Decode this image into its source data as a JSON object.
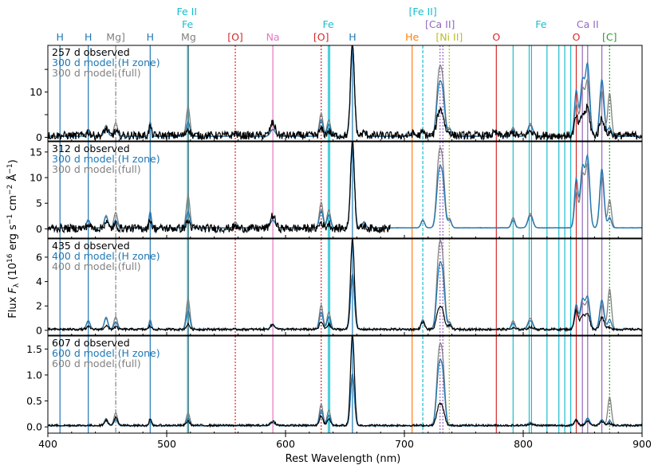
{
  "chart_data": {
    "type": "line",
    "xlabel": "Rest Wavelength (nm)",
    "ylabel": "Flux F_λ (10^16 erg s^-1 cm^-2 Å^-1)",
    "ylabel_parts": [
      "Flux ",
      "F",
      "λ",
      " (10",
      "16",
      " erg s",
      "−1",
      " cm",
      "−2",
      " Å",
      "−1",
      ")"
    ],
    "xlim": [
      400,
      900
    ],
    "xticks": [
      "400",
      "500",
      "600",
      "700",
      "800",
      "900"
    ],
    "colors": {
      "observed": "#000000",
      "hzone": "#1f77b4",
      "full": "#808080"
    },
    "line_ids": [
      {
        "label": "H",
        "x": 410.2,
        "color": "#1f77b4",
        "style": "solid",
        "row": 0
      },
      {
        "label": "H",
        "x": 434.0,
        "color": "#1f77b4",
        "style": "solid",
        "row": 0
      },
      {
        "label": "Mg]",
        "x": 457.1,
        "color": "#808080",
        "style": "dashdot",
        "row": 0
      },
      {
        "label": "H",
        "x": 486.1,
        "color": "#1f77b4",
        "style": "solid",
        "row": 0
      },
      {
        "label": "Fe II",
        "x": 517.0,
        "color": "#17becf",
        "style": "none",
        "row": 2
      },
      {
        "label": "Fe",
        "x": 517.5,
        "color": "#17becf",
        "style": "solid",
        "row": 1
      },
      {
        "label": "Mg",
        "x": 518.4,
        "color": "#808080",
        "style": "solid",
        "row": 0
      },
      {
        "label": "[O]",
        "x": 557.7,
        "color": "#d62728",
        "style": "dotted",
        "row": 0
      },
      {
        "label": "Na",
        "x": 589.3,
        "color": "#e377c2",
        "style": "solid",
        "row": 0
      },
      {
        "label": "[O]",
        "x": 630.0,
        "color": "#d62728",
        "style": "dotted",
        "row": 0
      },
      {
        "label": "Fe",
        "x": 636.0,
        "color": "#17becf",
        "style": "solid",
        "row": 1
      },
      {
        "label": "H",
        "x": 656.3,
        "color": "#1f77b4",
        "style": "solid",
        "row": 0
      },
      {
        "label": "He",
        "x": 706.5,
        "color": "#ff7f0e",
        "style": "solid",
        "row": 0
      },
      {
        "label": "[Fe II]",
        "x": 715.5,
        "color": "#17becf",
        "style": "dashed",
        "row": 2
      },
      {
        "label": "[Ca II]",
        "x": 730.0,
        "color": "#9467bd",
        "style": "dotted",
        "row": 1
      },
      {
        "label": "[Ni II]",
        "x": 737.8,
        "color": "#bcbd22",
        "style": "dotted",
        "row": 0
      },
      {
        "label": "O",
        "x": 777.4,
        "color": "#d62728",
        "style": "solid",
        "row": 0
      },
      {
        "label": "Fe",
        "x": 815.0,
        "color": "#17becf",
        "style": "none",
        "row": 1
      },
      {
        "label": "O",
        "x": 844.6,
        "color": "#d62728",
        "style": "solid",
        "row": 0
      },
      {
        "label": "Ca II",
        "x": 854.2,
        "color": "#9467bd",
        "style": "solid",
        "row": 1
      },
      {
        "label": "[C]",
        "x": 872.7,
        "color": "#2ca02c",
        "style": "dotted",
        "row": 0
      }
    ],
    "extra_lines": [
      {
        "x": 517.8,
        "color": "#17becf",
        "style": "solid"
      },
      {
        "x": 637.2,
        "color": "#17becf",
        "style": "solid"
      },
      {
        "x": 732.4,
        "color": "#9467bd",
        "style": "dotted"
      },
      {
        "x": 791.5,
        "color": "#17becf",
        "style": "solid"
      },
      {
        "x": 805.0,
        "color": "#17becf",
        "style": "solid"
      },
      {
        "x": 807.0,
        "color": "#17becf",
        "style": "solid"
      },
      {
        "x": 820.0,
        "color": "#17becf",
        "style": "solid"
      },
      {
        "x": 830.0,
        "color": "#17becf",
        "style": "solid"
      },
      {
        "x": 835.0,
        "color": "#17becf",
        "style": "solid"
      },
      {
        "x": 840.0,
        "color": "#17becf",
        "style": "solid"
      },
      {
        "x": 849.8,
        "color": "#9467bd",
        "style": "solid"
      },
      {
        "x": 866.2,
        "color": "#9467bd",
        "style": "solid"
      }
    ],
    "panels": [
      {
        "legend": [
          "257 d observed",
          "300 d model (H zone)",
          "300 d model (full)"
        ],
        "ylim": [
          -0.8,
          20.3
        ],
        "yticks": [
          0,
          5,
          10,
          15
        ],
        "yticklabels": [
          "0",
          "",
          "10",
          ""
        ],
        "noise": 0.9,
        "obs_max": 900,
        "obs_cont": 0.4,
        "peaks": [
          {
            "x": 656.3,
            "w": 1.6,
            "obs": 20.3,
            "mod": 20.3,
            "full": 20.3
          },
          {
            "x": 589.3,
            "w": 2.0,
            "obs": 2.8,
            "mod": 1.5,
            "full": 1.5
          },
          {
            "x": 630.0,
            "w": 1.5,
            "obs": 1.4,
            "mod": 3.6,
            "full": 5.1
          },
          {
            "x": 636.4,
            "w": 1.5,
            "obs": 1.0,
            "mod": 2.6,
            "full": 3.6
          },
          {
            "x": 729.1,
            "w": 2.0,
            "obs": 4.8,
            "mod": 10.2,
            "full": 13.0
          },
          {
            "x": 732.4,
            "w": 1.8,
            "obs": 3.5,
            "mod": 7.5,
            "full": 9.5
          },
          {
            "x": 486.1,
            "w": 1.0,
            "obs": 2.0,
            "mod": 3.0,
            "full": 3.2
          },
          {
            "x": 518.0,
            "w": 1.5,
            "obs": 1.6,
            "mod": 3.2,
            "full": 6.5
          },
          {
            "x": 457.1,
            "w": 1.5,
            "obs": 0.8,
            "mod": 1.5,
            "full": 3.0
          },
          {
            "x": 434.0,
            "w": 1.5,
            "obs": 0.8,
            "mod": 1.5,
            "full": 1.6
          },
          {
            "x": 449.0,
            "w": 1.5,
            "obs": 1.5,
            "mod": 2.2,
            "full": 2.4
          },
          {
            "x": 557.7,
            "w": 1.5,
            "obs": 0.5,
            "mod": 0.6,
            "full": 1.2
          },
          {
            "x": 844.6,
            "w": 1.5,
            "obs": 4.0,
            "mod": 10.0,
            "full": 7.0
          },
          {
            "x": 849.8,
            "w": 1.8,
            "obs": 4.5,
            "mod": 12.0,
            "full": 10.0
          },
          {
            "x": 854.2,
            "w": 1.8,
            "obs": 6.0,
            "mod": 15.5,
            "full": 12.0
          },
          {
            "x": 866.2,
            "w": 1.8,
            "obs": 4.0,
            "mod": 12.5,
            "full": 10.0
          },
          {
            "x": 872.7,
            "w": 1.5,
            "obs": 0.8,
            "mod": 2.0,
            "full": 9.5
          },
          {
            "x": 806.0,
            "w": 2.0,
            "obs": 1.0,
            "mod": 2.4,
            "full": 2.8
          },
          {
            "x": 791.5,
            "w": 1.5,
            "obs": 0.6,
            "mod": 1.5,
            "full": 2.0
          },
          {
            "x": 715.5,
            "w": 1.5,
            "obs": 0.6,
            "mod": 1.4,
            "full": 1.6
          },
          {
            "x": 738.0,
            "w": 1.5,
            "obs": 0.8,
            "mod": 1.5,
            "full": 1.8
          },
          {
            "x": 707.0,
            "w": 1.5,
            "obs": 0.4,
            "mod": 0.9,
            "full": 1.1
          },
          {
            "x": 666.0,
            "w": 1.5,
            "obs": 0.6,
            "mod": 1.0,
            "full": 1.2
          },
          {
            "x": 776.0,
            "w": 2.0,
            "obs": 0.5,
            "mod": 1.0,
            "full": 1.2
          }
        ]
      },
      {
        "legend": [
          "312 d observed",
          "300 d model (H zone)",
          "300 d model (full)"
        ],
        "ylim": [
          -1.8,
          17.0
        ],
        "yticks": [
          0,
          5,
          10,
          15
        ],
        "yticklabels": [
          "0",
          "5",
          "10",
          "15"
        ],
        "noise": 0.8,
        "obs_max": 688,
        "obs_cont": 0.1,
        "peaks": [
          {
            "x": 656.3,
            "w": 1.6,
            "obs": 17.0,
            "mod": 17.0,
            "full": 17.0
          },
          {
            "x": 589.3,
            "w": 2.0,
            "obs": 2.5,
            "mod": 1.5,
            "full": 1.5
          },
          {
            "x": 630.0,
            "w": 1.5,
            "obs": 1.2,
            "mod": 3.4,
            "full": 5.0
          },
          {
            "x": 636.4,
            "w": 1.5,
            "obs": 0.9,
            "mod": 2.5,
            "full": 3.5
          },
          {
            "x": 729.1,
            "w": 2.0,
            "obs": 0.0,
            "mod": 10.0,
            "full": 13.0
          },
          {
            "x": 732.4,
            "w": 1.8,
            "obs": 0.0,
            "mod": 7.5,
            "full": 9.5
          },
          {
            "x": 486.1,
            "w": 1.0,
            "obs": 1.8,
            "mod": 3.0,
            "full": 3.2
          },
          {
            "x": 518.0,
            "w": 1.5,
            "obs": 1.4,
            "mod": 3.2,
            "full": 6.3
          },
          {
            "x": 457.1,
            "w": 1.5,
            "obs": 0.7,
            "mod": 1.5,
            "full": 3.0
          },
          {
            "x": 434.0,
            "w": 1.5,
            "obs": 0.7,
            "mod": 1.5,
            "full": 1.6
          },
          {
            "x": 449.0,
            "w": 1.5,
            "obs": 1.3,
            "mod": 2.2,
            "full": 2.4
          },
          {
            "x": 557.7,
            "w": 1.5,
            "obs": 0.4,
            "mod": 0.6,
            "full": 1.2
          },
          {
            "x": 844.6,
            "w": 1.5,
            "obs": 0.0,
            "mod": 9.5,
            "full": 7.0
          },
          {
            "x": 849.8,
            "w": 1.8,
            "obs": 0.0,
            "mod": 11.5,
            "full": 10.0
          },
          {
            "x": 854.2,
            "w": 1.8,
            "obs": 0.0,
            "mod": 13.5,
            "full": 12.0
          },
          {
            "x": 866.2,
            "w": 1.8,
            "obs": 0.0,
            "mod": 11.5,
            "full": 10.0
          },
          {
            "x": 872.7,
            "w": 1.5,
            "obs": 0.0,
            "mod": 2.0,
            "full": 5.5
          },
          {
            "x": 806.0,
            "w": 2.0,
            "obs": 0.0,
            "mod": 2.4,
            "full": 2.8
          },
          {
            "x": 791.5,
            "w": 1.5,
            "obs": 0.0,
            "mod": 1.5,
            "full": 2.0
          },
          {
            "x": 715.5,
            "w": 1.5,
            "obs": 0.0,
            "mod": 1.4,
            "full": 1.6
          },
          {
            "x": 738.0,
            "w": 1.5,
            "obs": 0.0,
            "mod": 1.5,
            "full": 1.8
          },
          {
            "x": 666.0,
            "w": 1.5,
            "obs": 0.5,
            "mod": 1.0,
            "full": 1.2
          }
        ]
      },
      {
        "legend": [
          "435 d observed",
          "400 d model (H zone)",
          "400 d model (full)"
        ],
        "ylim": [
          -0.4,
          7.5
        ],
        "yticks": [
          0,
          2,
          4,
          6
        ],
        "yticklabels": [
          "0",
          "2",
          "4",
          "6"
        ],
        "noise": 0.1,
        "obs_max": 900,
        "obs_cont": 0.08,
        "peaks": [
          {
            "x": 656.3,
            "w": 1.6,
            "obs": 7.5,
            "mod": 4.5,
            "full": 4.5
          },
          {
            "x": 589.3,
            "w": 2.0,
            "obs": 0.4,
            "mod": 0.3,
            "full": 0.3
          },
          {
            "x": 630.0,
            "w": 1.5,
            "obs": 0.6,
            "mod": 1.4,
            "full": 2.0
          },
          {
            "x": 636.4,
            "w": 1.5,
            "obs": 0.4,
            "mod": 1.0,
            "full": 1.4
          },
          {
            "x": 729.1,
            "w": 2.0,
            "obs": 1.6,
            "mod": 4.5,
            "full": 6.0
          },
          {
            "x": 732.4,
            "w": 1.8,
            "obs": 1.1,
            "mod": 3.5,
            "full": 4.5
          },
          {
            "x": 486.1,
            "w": 1.0,
            "obs": 0.3,
            "mod": 0.7,
            "full": 0.8
          },
          {
            "x": 518.0,
            "w": 1.5,
            "obs": 0.4,
            "mod": 1.5,
            "full": 2.5
          },
          {
            "x": 457.1,
            "w": 1.5,
            "obs": 0.2,
            "mod": 0.6,
            "full": 1.0
          },
          {
            "x": 434.0,
            "w": 1.5,
            "obs": 0.2,
            "mod": 0.7,
            "full": 0.7
          },
          {
            "x": 449.0,
            "w": 1.5,
            "obs": 0.3,
            "mod": 0.9,
            "full": 1.0
          },
          {
            "x": 844.6,
            "w": 1.5,
            "obs": 1.6,
            "mod": 2.0,
            "full": 1.5
          },
          {
            "x": 849.8,
            "w": 1.8,
            "obs": 1.1,
            "mod": 2.4,
            "full": 2.0
          },
          {
            "x": 854.2,
            "w": 1.8,
            "obs": 1.3,
            "mod": 2.6,
            "full": 2.2
          },
          {
            "x": 866.2,
            "w": 1.8,
            "obs": 1.0,
            "mod": 2.4,
            "full": 2.0
          },
          {
            "x": 872.7,
            "w": 1.5,
            "obs": 0.2,
            "mod": 0.8,
            "full": 3.3
          },
          {
            "x": 806.0,
            "w": 2.0,
            "obs": 0.2,
            "mod": 0.7,
            "full": 0.9
          },
          {
            "x": 791.5,
            "w": 1.5,
            "obs": 0.1,
            "mod": 0.5,
            "full": 0.7
          },
          {
            "x": 715.5,
            "w": 1.5,
            "obs": 0.6,
            "mod": 0.7,
            "full": 0.8
          },
          {
            "x": 738.0,
            "w": 1.5,
            "obs": 0.3,
            "mod": 0.5,
            "full": 0.6
          }
        ]
      },
      {
        "legend": [
          "607 d observed",
          "600 d model (H zone)",
          "600 d model (full)"
        ],
        "ylim": [
          -0.12,
          1.75
        ],
        "yticks": [
          0,
          0.5,
          1.0,
          1.5
        ],
        "yticklabels": [
          "0.0",
          "0.5",
          "1.0",
          "1.5"
        ],
        "noise": 0.02,
        "obs_max": 900,
        "obs_cont": 0.03,
        "peaks": [
          {
            "x": 656.3,
            "w": 1.6,
            "obs": 1.75,
            "mod": 1.0,
            "full": 1.0
          },
          {
            "x": 589.3,
            "w": 2.0,
            "obs": 0.08,
            "mod": 0.06,
            "full": 0.06
          },
          {
            "x": 630.0,
            "w": 1.5,
            "obs": 0.18,
            "mod": 0.3,
            "full": 0.42
          },
          {
            "x": 636.4,
            "w": 1.5,
            "obs": 0.12,
            "mod": 0.2,
            "full": 0.3
          },
          {
            "x": 729.1,
            "w": 2.0,
            "obs": 0.35,
            "mod": 1.05,
            "full": 1.3
          },
          {
            "x": 732.4,
            "w": 1.8,
            "obs": 0.25,
            "mod": 0.8,
            "full": 1.0
          },
          {
            "x": 486.1,
            "w": 1.0,
            "obs": 0.12,
            "mod": 0.1,
            "full": 0.1
          },
          {
            "x": 518.0,
            "w": 1.5,
            "obs": 0.08,
            "mod": 0.15,
            "full": 0.25
          },
          {
            "x": 457.1,
            "w": 1.5,
            "obs": 0.15,
            "mod": 0.12,
            "full": 0.25
          },
          {
            "x": 449.0,
            "w": 1.5,
            "obs": 0.1,
            "mod": 0.12,
            "full": 0.14
          },
          {
            "x": 844.6,
            "w": 1.5,
            "obs": 0.1,
            "mod": 0.12,
            "full": 0.1
          },
          {
            "x": 854.2,
            "w": 1.8,
            "obs": 0.08,
            "mod": 0.15,
            "full": 0.12
          },
          {
            "x": 866.2,
            "w": 1.8,
            "obs": 0.08,
            "mod": 0.12,
            "full": 0.1
          },
          {
            "x": 872.7,
            "w": 1.5,
            "obs": 0.04,
            "mod": 0.1,
            "full": 0.55
          },
          {
            "x": 806.0,
            "w": 2.0,
            "obs": 0.03,
            "mod": 0.06,
            "full": 0.07
          }
        ]
      }
    ]
  }
}
